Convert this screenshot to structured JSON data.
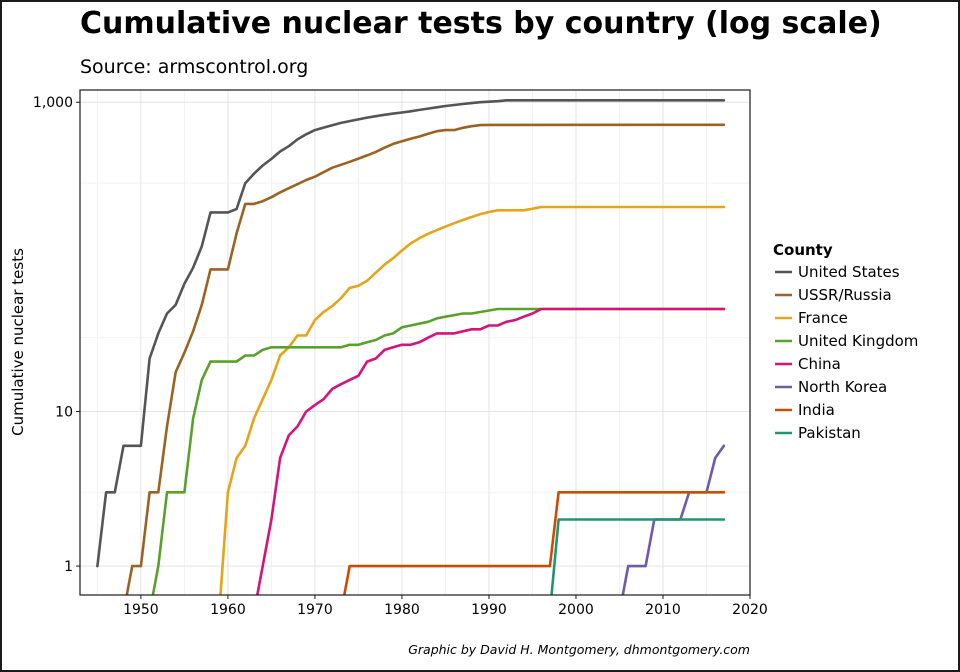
{
  "caption": "Graphic by David H. Montgomery, dhmontgomery.com",
  "chart_data": {
    "type": "line",
    "title": "Cumulative nuclear tests by country (log scale)",
    "subtitle": "Source: armscontrol.org",
    "xlabel": "",
    "ylabel": "Cumulative nuclear tests",
    "xlim": [
      1943,
      2020
    ],
    "ylim": [
      0.65,
      1200
    ],
    "yscale": "log",
    "grid": true,
    "x_ticks": [
      1950,
      1960,
      1970,
      1980,
      1990,
      2000,
      2010,
      2020
    ],
    "x_tick_labels": [
      "1950",
      "1960",
      "1970",
      "1980",
      "1990",
      "2000",
      "2010",
      "2020"
    ],
    "y_ticks": [
      1,
      10,
      1000
    ],
    "y_tick_labels": [
      "1",
      "10",
      "1,000"
    ],
    "legend": {
      "title": "County",
      "position": "right"
    },
    "series": [
      {
        "name": "United States",
        "color": "#555555",
        "points": [
          [
            1945,
            1
          ],
          [
            1946,
            3
          ],
          [
            1947,
            3
          ],
          [
            1948,
            6
          ],
          [
            1949,
            6
          ],
          [
            1950,
            6
          ],
          [
            1951,
            22
          ],
          [
            1952,
            32
          ],
          [
            1953,
            43
          ],
          [
            1954,
            49
          ],
          [
            1955,
            67
          ],
          [
            1956,
            85
          ],
          [
            1957,
            117
          ],
          [
            1958,
            194
          ],
          [
            1959,
            194
          ],
          [
            1960,
            194
          ],
          [
            1961,
            204
          ],
          [
            1962,
            300
          ],
          [
            1963,
            345
          ],
          [
            1964,
            390
          ],
          [
            1965,
            430
          ],
          [
            1966,
            480
          ],
          [
            1967,
            520
          ],
          [
            1968,
            575
          ],
          [
            1969,
            620
          ],
          [
            1970,
            660
          ],
          [
            1971,
            685
          ],
          [
            1972,
            710
          ],
          [
            1973,
            735
          ],
          [
            1974,
            755
          ],
          [
            1975,
            775
          ],
          [
            1976,
            795
          ],
          [
            1977,
            812
          ],
          [
            1978,
            830
          ],
          [
            1979,
            845
          ],
          [
            1980,
            858
          ],
          [
            1981,
            874
          ],
          [
            1982,
            892
          ],
          [
            1983,
            910
          ],
          [
            1984,
            928
          ],
          [
            1985,
            945
          ],
          [
            1986,
            960
          ],
          [
            1987,
            974
          ],
          [
            1988,
            988
          ],
          [
            1989,
            1000
          ],
          [
            1990,
            1008
          ],
          [
            1991,
            1015
          ],
          [
            1992,
            1030
          ],
          [
            2017,
            1030
          ]
        ]
      },
      {
        "name": "USSR/Russia",
        "color": "#9A6324",
        "points": [
          [
            1948,
            0.5
          ],
          [
            1949,
            1
          ],
          [
            1950,
            1
          ],
          [
            1951,
            3
          ],
          [
            1952,
            3
          ],
          [
            1953,
            8
          ],
          [
            1954,
            18
          ],
          [
            1955,
            24
          ],
          [
            1956,
            33
          ],
          [
            1957,
            49
          ],
          [
            1958,
            83
          ],
          [
            1959,
            83
          ],
          [
            1960,
            83
          ],
          [
            1961,
            142
          ],
          [
            1962,
            220
          ],
          [
            1963,
            220
          ],
          [
            1964,
            229
          ],
          [
            1965,
            243
          ],
          [
            1966,
            261
          ],
          [
            1967,
            278
          ],
          [
            1968,
            295
          ],
          [
            1969,
            314
          ],
          [
            1970,
            330
          ],
          [
            1971,
            353
          ],
          [
            1972,
            377
          ],
          [
            1973,
            394
          ],
          [
            1974,
            412
          ],
          [
            1975,
            432
          ],
          [
            1976,
            453
          ],
          [
            1977,
            477
          ],
          [
            1978,
            508
          ],
          [
            1979,
            538
          ],
          [
            1980,
            560
          ],
          [
            1981,
            581
          ],
          [
            1982,
            600
          ],
          [
            1983,
            625
          ],
          [
            1984,
            650
          ],
          [
            1985,
            660
          ],
          [
            1986,
            660
          ],
          [
            1987,
            683
          ],
          [
            1988,
            700
          ],
          [
            1989,
            712
          ],
          [
            1990,
            714
          ],
          [
            2017,
            715
          ]
        ]
      },
      {
        "name": "France",
        "color": "#E6A519",
        "points": [
          [
            1959,
            0.5
          ],
          [
            1960,
            3
          ],
          [
            1961,
            5
          ],
          [
            1962,
            6
          ],
          [
            1963,
            9
          ],
          [
            1964,
            12
          ],
          [
            1965,
            16
          ],
          [
            1966,
            23
          ],
          [
            1967,
            26
          ],
          [
            1968,
            31
          ],
          [
            1969,
            31
          ],
          [
            1970,
            39
          ],
          [
            1971,
            44
          ],
          [
            1972,
            48
          ],
          [
            1973,
            54
          ],
          [
            1974,
            63
          ],
          [
            1975,
            65
          ],
          [
            1976,
            70
          ],
          [
            1977,
            79
          ],
          [
            1978,
            89
          ],
          [
            1979,
            98
          ],
          [
            1980,
            110
          ],
          [
            1981,
            122
          ],
          [
            1982,
            132
          ],
          [
            1983,
            141
          ],
          [
            1984,
            149
          ],
          [
            1985,
            157
          ],
          [
            1986,
            165
          ],
          [
            1987,
            173
          ],
          [
            1988,
            181
          ],
          [
            1989,
            189
          ],
          [
            1990,
            195
          ],
          [
            1991,
            200
          ],
          [
            1992,
            200
          ],
          [
            1993,
            200
          ],
          [
            1994,
            200
          ],
          [
            1995,
            205
          ],
          [
            1996,
            210
          ],
          [
            2017,
            210
          ]
        ]
      },
      {
        "name": "United Kingdom",
        "color": "#5AA02C",
        "points": [
          [
            1951,
            0.5
          ],
          [
            1952,
            1
          ],
          [
            1953,
            3
          ],
          [
            1954,
            3
          ],
          [
            1955,
            3
          ],
          [
            1956,
            9
          ],
          [
            1957,
            16
          ],
          [
            1958,
            21
          ],
          [
            1959,
            21
          ],
          [
            1960,
            21
          ],
          [
            1961,
            21
          ],
          [
            1962,
            23
          ],
          [
            1963,
            23
          ],
          [
            1964,
            25
          ],
          [
            1965,
            26
          ],
          [
            1966,
            26
          ],
          [
            1967,
            26
          ],
          [
            1968,
            26
          ],
          [
            1969,
            26
          ],
          [
            1970,
            26
          ],
          [
            1971,
            26
          ],
          [
            1972,
            26
          ],
          [
            1973,
            26
          ],
          [
            1974,
            27
          ],
          [
            1975,
            27
          ],
          [
            1976,
            28
          ],
          [
            1977,
            29
          ],
          [
            1978,
            31
          ],
          [
            1979,
            32
          ],
          [
            1980,
            35
          ],
          [
            1981,
            36
          ],
          [
            1982,
            37
          ],
          [
            1983,
            38
          ],
          [
            1984,
            40
          ],
          [
            1985,
            41
          ],
          [
            1986,
            42
          ],
          [
            1987,
            43
          ],
          [
            1988,
            43
          ],
          [
            1989,
            44
          ],
          [
            1990,
            45
          ],
          [
            1991,
            46
          ],
          [
            1992,
            46
          ],
          [
            1993,
            46
          ],
          [
            1994,
            46
          ],
          [
            1995,
            46
          ],
          [
            1996,
            46
          ],
          [
            2017,
            46
          ]
        ]
      },
      {
        "name": "China",
        "color": "#D4137C",
        "points": [
          [
            1963,
            0.5
          ],
          [
            1964,
            1
          ],
          [
            1965,
            2
          ],
          [
            1966,
            5
          ],
          [
            1967,
            7
          ],
          [
            1968,
            8
          ],
          [
            1969,
            10
          ],
          [
            1970,
            11
          ],
          [
            1971,
            12
          ],
          [
            1972,
            14
          ],
          [
            1973,
            15
          ],
          [
            1974,
            16
          ],
          [
            1975,
            17
          ],
          [
            1976,
            21
          ],
          [
            1977,
            22
          ],
          [
            1978,
            25
          ],
          [
            1979,
            26
          ],
          [
            1980,
            27
          ],
          [
            1981,
            27
          ],
          [
            1982,
            28
          ],
          [
            1983,
            30
          ],
          [
            1984,
            32
          ],
          [
            1985,
            32
          ],
          [
            1986,
            32
          ],
          [
            1987,
            33
          ],
          [
            1988,
            34
          ],
          [
            1989,
            34
          ],
          [
            1990,
            36
          ],
          [
            1991,
            36
          ],
          [
            1992,
            38
          ],
          [
            1993,
            39
          ],
          [
            1994,
            41
          ],
          [
            1995,
            43
          ],
          [
            1996,
            46
          ],
          [
            2017,
            46
          ]
        ]
      },
      {
        "name": "North Korea",
        "color": "#6E5AAE",
        "points": [
          [
            2005,
            0.5
          ],
          [
            2006,
            1
          ],
          [
            2007,
            1
          ],
          [
            2008,
            1
          ],
          [
            2009,
            2
          ],
          [
            2010,
            2
          ],
          [
            2011,
            2
          ],
          [
            2012,
            2
          ],
          [
            2013,
            3
          ],
          [
            2014,
            3
          ],
          [
            2015,
            3
          ],
          [
            2016,
            5
          ],
          [
            2017,
            6
          ]
        ]
      },
      {
        "name": "India",
        "color": "#CC4C02",
        "points": [
          [
            1973,
            0.5
          ],
          [
            1974,
            1
          ],
          [
            1997,
            1
          ],
          [
            1998,
            3
          ],
          [
            2017,
            3
          ]
        ]
      },
      {
        "name": "Pakistan",
        "color": "#1E9672",
        "points": [
          [
            1997,
            0.5
          ],
          [
            1998,
            2
          ],
          [
            2017,
            2
          ]
        ]
      }
    ]
  }
}
